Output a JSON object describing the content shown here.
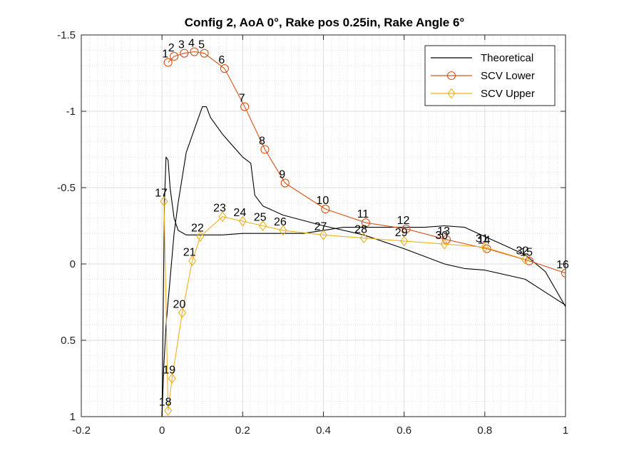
{
  "chart_data": {
    "type": "line",
    "title": "Config 2, AoA 0°, Rake pos 0.25in, Rake Angle 6°",
    "xlim": [
      -0.2,
      1
    ],
    "ylim": [
      -1.5,
      1
    ],
    "y_reversed": true,
    "grid": true,
    "minor_grid": true,
    "legend_position": "top-right",
    "xticks": [
      -0.2,
      0,
      0.2,
      0.4,
      0.6,
      0.8,
      1
    ],
    "yticks": [
      -1.5,
      -1,
      -0.5,
      0,
      0.5,
      1
    ],
    "xtick_labels": [
      "-0.2",
      "0",
      "0.2",
      "0.4",
      "0.6",
      "0.8",
      "1"
    ],
    "ytick_labels": [
      "-1.5",
      "-1",
      "-0.5",
      "0",
      "0.5",
      "1"
    ],
    "series": [
      {
        "name": "Theoretical",
        "color": "#000000",
        "marker": "none",
        "segments": [
          {
            "x": [
              0.0,
              0.003,
              0.006,
              0.01,
              0.015,
              0.02,
              0.03,
              0.04,
              0.06,
              0.08,
              0.1,
              0.15,
              0.2,
              0.25,
              0.3,
              0.35,
              0.4,
              0.45,
              0.5,
              0.55,
              0.6,
              0.65,
              0.7,
              0.75,
              0.8,
              0.85,
              0.9,
              0.95,
              1.0
            ],
            "y": [
              1.0,
              0.3,
              -0.4,
              -0.7,
              -0.68,
              -0.5,
              -0.3,
              -0.22,
              -0.19,
              -0.19,
              -0.19,
              -0.19,
              -0.2,
              -0.2,
              -0.2,
              -0.2,
              -0.22,
              -0.24,
              -0.24,
              -0.24,
              -0.24,
              -0.24,
              -0.25,
              -0.24,
              -0.18,
              -0.12,
              -0.06,
              0.05,
              0.28
            ]
          },
          {
            "x": [
              0.0,
              0.004,
              0.01,
              0.02,
              0.03,
              0.04,
              0.06,
              0.08,
              0.1,
              0.11,
              0.12,
              0.15,
              0.2,
              0.22,
              0.23,
              0.25,
              0.3,
              0.4,
              0.5,
              0.6,
              0.7,
              0.75,
              0.8,
              0.9,
              1.0
            ],
            "y": [
              1.0,
              0.7,
              0.4,
              0.1,
              -0.2,
              -0.4,
              -0.73,
              -0.88,
              -1.03,
              -1.03,
              -0.96,
              -0.85,
              -0.7,
              -0.66,
              -0.45,
              -0.38,
              -0.32,
              -0.25,
              -0.19,
              -0.1,
              0.0,
              0.03,
              0.04,
              0.1,
              0.27
            ]
          }
        ]
      },
      {
        "name": "SCV Lower",
        "color": "#D95319",
        "marker": "circle",
        "x": [
          0.015,
          0.03,
          0.055,
          0.08,
          0.105,
          0.155,
          0.205,
          0.255,
          0.305,
          0.405,
          0.505,
          0.605,
          0.705,
          0.805,
          0.91,
          1.0
        ],
        "y": [
          -1.32,
          -1.36,
          -1.38,
          -1.39,
          -1.38,
          -1.28,
          -1.03,
          -0.75,
          -0.53,
          -0.36,
          -0.27,
          -0.23,
          -0.16,
          -0.1,
          -0.02,
          0.06
        ],
        "labels": [
          "1",
          "2",
          "3",
          "4",
          "5",
          "6",
          "7",
          "8",
          "9",
          "10",
          "11",
          "12",
          "13",
          "14",
          "15",
          "16"
        ]
      },
      {
        "name": "SCV Upper",
        "color": "#EDB120",
        "marker": "diamond",
        "x": [
          0.005,
          0.015,
          0.025,
          0.05,
          0.075,
          0.095,
          0.15,
          0.2,
          0.25,
          0.3,
          0.4,
          0.5,
          0.6,
          0.7,
          0.8,
          0.9
        ],
        "y": [
          -0.41,
          0.96,
          0.75,
          0.32,
          -0.02,
          -0.18,
          -0.31,
          -0.28,
          -0.25,
          -0.22,
          -0.19,
          -0.17,
          -0.15,
          -0.13,
          -0.11,
          -0.03
        ],
        "labels": [
          "17",
          "18",
          "19",
          "20",
          "21",
          "22",
          "23",
          "24",
          "25",
          "26",
          "27",
          "28",
          "29",
          "30",
          "31",
          "32"
        ]
      }
    ]
  }
}
